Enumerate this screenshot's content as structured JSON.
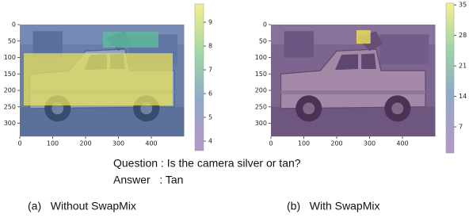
{
  "panels": [
    {
      "caption": "(a)   Without SwapMix",
      "xlim": [
        0,
        500
      ],
      "ylim": [
        340,
        0
      ],
      "xticks": [
        0,
        100,
        200,
        300,
        400
      ],
      "yticks": [
        0,
        50,
        100,
        150,
        200,
        250,
        300
      ],
      "colorbar_lim": [
        3.6,
        9.77
      ],
      "colorbar_ticks": [
        4,
        5,
        6,
        7,
        8,
        9
      ]
    },
    {
      "caption": "(b)   With SwapMix",
      "xlim": [
        0,
        500
      ],
      "ylim": [
        340,
        0
      ],
      "xticks": [
        0,
        100,
        200,
        300,
        400
      ],
      "yticks": [
        0,
        50,
        100,
        150,
        200,
        250,
        300
      ],
      "colorbar_lim": [
        1,
        35.4
      ],
      "colorbar_ticks": [
        7,
        14,
        21,
        28,
        35
      ]
    }
  ],
  "question": "Question : Is the camera silver or tan?",
  "answer": "Answer   : Tan"
}
